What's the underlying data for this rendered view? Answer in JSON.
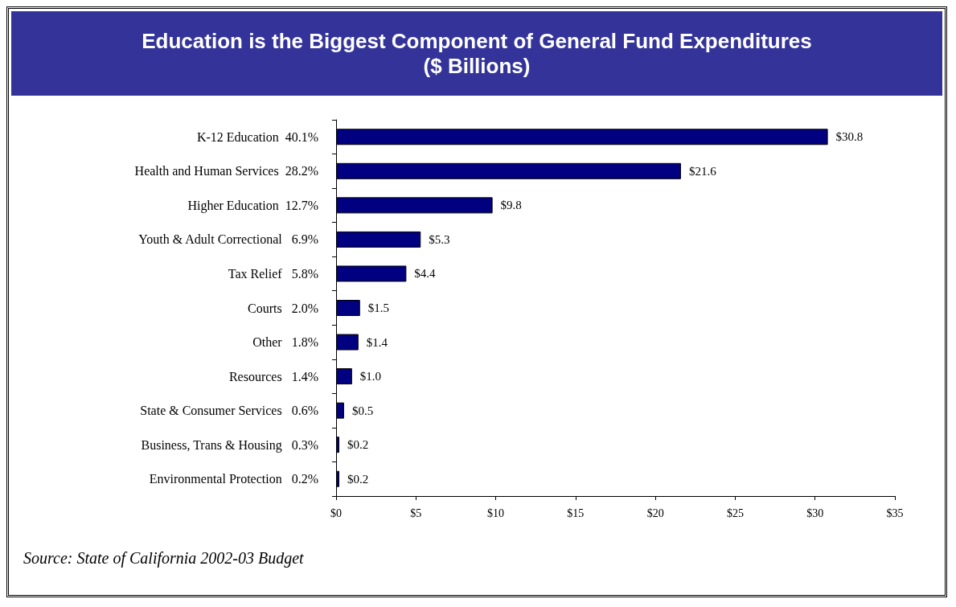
{
  "chart_data": {
    "type": "bar",
    "orientation": "horizontal",
    "title": "Education is the Biggest Component of General Fund Expenditures\n($ Billions)",
    "categories": [
      "K-12 Education  40.1%",
      "Health and Human Services  28.2%",
      "Higher Education  12.7%",
      "Youth & Adult Correctional   6.9%",
      "Tax Relief   5.8%",
      "Courts   2.0%",
      "Other   1.8%",
      "Resources   1.4%",
      "State & Consumer Services   0.6%",
      "Business, Trans & Housing   0.3%",
      "Environmental Protection   0.2%"
    ],
    "values": [
      30.8,
      21.6,
      9.8,
      5.3,
      4.4,
      1.5,
      1.4,
      1.0,
      0.5,
      0.2,
      0.2
    ],
    "value_labels": [
      "$30.8",
      "$21.6",
      "$9.8",
      "$5.3",
      "$4.4",
      "$1.5",
      "$1.4",
      "$1.0",
      "$0.5",
      "$0.2",
      "$0.2"
    ],
    "color": "#000080",
    "xlim": [
      0,
      35
    ],
    "xticks": [
      {
        "value": 0,
        "label": "$0"
      },
      {
        "value": 5,
        "label": "$5"
      },
      {
        "value": 10,
        "label": "$10"
      },
      {
        "value": 15,
        "label": "$15"
      },
      {
        "value": 20,
        "label": "$20"
      },
      {
        "value": 25,
        "label": "$25"
      },
      {
        "value": 30,
        "label": "$30"
      },
      {
        "value": 35,
        "label": "$35"
      }
    ],
    "grid": false,
    "annotations": [
      "Source: State of California 2002-03  Budget"
    ]
  }
}
